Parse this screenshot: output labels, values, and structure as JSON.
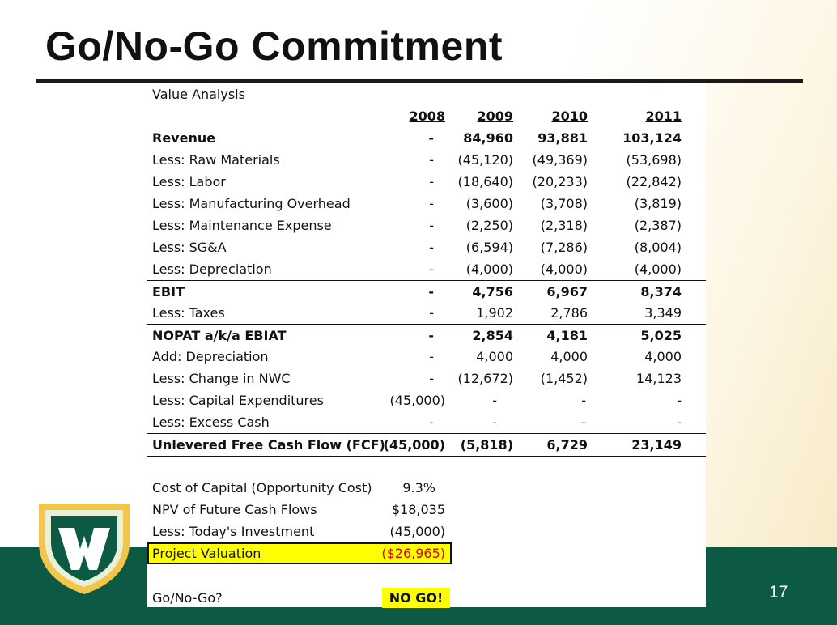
{
  "slide": {
    "title": "Go/No-Go Commitment",
    "page_number": "17",
    "colors": {
      "band": "#0c5a43",
      "highlight": "#ffff00",
      "negative": "#e00000"
    },
    "logo_icon": "wayne-state-w-shield-icon"
  },
  "sheet": {
    "caption": "Value Analysis",
    "years": [
      "2008",
      "2009",
      "2010",
      "2011"
    ],
    "rows": [
      {
        "label": "Revenue",
        "v2008": "-",
        "v2009": "84,960",
        "v2010": "93,881",
        "v2011": "103,124"
      },
      {
        "label": "Less: Raw Materials",
        "v2008": "-",
        "v2009": "(45,120)",
        "v2010": "(49,369)",
        "v2011": "(53,698)"
      },
      {
        "label": "Less: Labor",
        "v2008": "-",
        "v2009": "(18,640)",
        "v2010": "(20,233)",
        "v2011": "(22,842)"
      },
      {
        "label": "Less: Manufacturing Overhead",
        "v2008": "-",
        "v2009": "(3,600)",
        "v2010": "(3,708)",
        "v2011": "(3,819)"
      },
      {
        "label": "Less: Maintenance Expense",
        "v2008": "-",
        "v2009": "(2,250)",
        "v2010": "(2,318)",
        "v2011": "(2,387)"
      },
      {
        "label": "Less: SG&A",
        "v2008": "-",
        "v2009": "(6,594)",
        "v2010": "(7,286)",
        "v2011": "(8,004)"
      },
      {
        "label": "Less: Depreciation",
        "v2008": "-",
        "v2009": "(4,000)",
        "v2010": "(4,000)",
        "v2011": "(4,000)"
      },
      {
        "label": "EBIT",
        "v2008": "-",
        "v2009": "4,756",
        "v2010": "6,967",
        "v2011": "8,374"
      },
      {
        "label": "Less: Taxes",
        "v2008": "-",
        "v2009": "1,902",
        "v2010": "2,786",
        "v2011": "3,349"
      },
      {
        "label": "NOPAT a/k/a EBIAT",
        "v2008": "-",
        "v2009": "2,854",
        "v2010": "4,181",
        "v2011": "5,025"
      },
      {
        "label": "Add: Depreciation",
        "v2008": "-",
        "v2009": "4,000",
        "v2010": "4,000",
        "v2011": "4,000"
      },
      {
        "label": "Less: Change in NWC",
        "v2008": "-",
        "v2009": "(12,672)",
        "v2010": "(1,452)",
        "v2011": "14,123"
      },
      {
        "label": "Less: Capital Expenditures",
        "v2008": "(45,000)",
        "v2009": "-",
        "v2010": "-",
        "v2011": "-"
      },
      {
        "label": "Less: Excess Cash",
        "v2008": "-",
        "v2009": "-",
        "v2010": "-",
        "v2011": "-"
      },
      {
        "label": "Unlevered Free Cash Flow (FCF)",
        "v2008": "(45,000)",
        "v2009": "(5,818)",
        "v2010": "6,729",
        "v2011": "23,149"
      }
    ],
    "summary": {
      "cost_of_capital_label": "Cost of Capital (Opportunity Cost)",
      "cost_of_capital_value": "9.3%",
      "npv_label": "NPV of Future Cash Flows",
      "npv_value": "$18,035",
      "investment_label": "Less: Today's Investment",
      "investment_value": "(45,000)",
      "valuation_label": "Project Valuation",
      "valuation_value": "($26,965)",
      "decision_label": "Go/No-Go?",
      "decision_value": "NO GO!"
    }
  }
}
